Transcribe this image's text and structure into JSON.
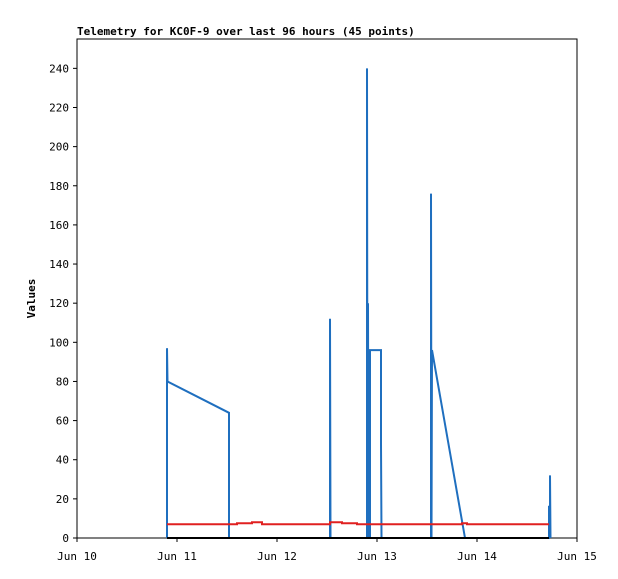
{
  "chart_data": {
    "type": "line",
    "title": "Telemetry for KC0F-9 over last 96 hours (45 points)",
    "xlabel": "",
    "ylabel": "Values",
    "x_ticks": [
      "Jun 10",
      "Jun 11",
      "Jun 12",
      "Jun 13",
      "Jun 14",
      "Jun 15"
    ],
    "y_ticks": [
      0,
      20,
      40,
      60,
      80,
      100,
      120,
      140,
      160,
      180,
      200,
      220,
      240
    ],
    "xlim_days": [
      10,
      15
    ],
    "ylim": [
      0,
      255
    ],
    "grid": false,
    "colors": {
      "blue": "#1f6fbf",
      "red": "#e02020",
      "black": "#000000"
    },
    "series": [
      {
        "color": "blue",
        "points": [
          [
            10.9,
            0
          ],
          [
            10.9,
            97
          ],
          [
            10.905,
            80
          ],
          [
            11.52,
            64
          ],
          [
            11.52,
            0
          ],
          [
            12.53,
            0
          ],
          [
            12.53,
            112
          ],
          [
            12.535,
            0
          ],
          [
            12.9,
            0
          ],
          [
            12.9,
            240
          ],
          [
            12.905,
            0
          ],
          [
            12.91,
            120
          ],
          [
            12.915,
            0
          ],
          [
            12.93,
            0
          ],
          [
            12.93,
            96
          ],
          [
            13.04,
            96
          ],
          [
            13.04,
            48
          ],
          [
            13.045,
            0
          ],
          [
            13.54,
            0
          ],
          [
            13.54,
            176
          ],
          [
            13.545,
            0
          ],
          [
            13.55,
            96
          ],
          [
            13.88,
            0
          ],
          [
            14.72,
            0
          ],
          [
            14.72,
            16
          ],
          [
            14.73,
            16
          ],
          [
            14.73,
            32
          ],
          [
            14.735,
            0
          ]
        ]
      },
      {
        "color": "red",
        "points": [
          [
            10.9,
            7
          ],
          [
            11.6,
            7
          ],
          [
            11.6,
            7.5
          ],
          [
            11.75,
            7.5
          ],
          [
            11.75,
            8
          ],
          [
            11.85,
            8
          ],
          [
            11.85,
            7
          ],
          [
            12.53,
            7
          ],
          [
            12.53,
            8
          ],
          [
            12.65,
            8
          ],
          [
            12.65,
            7.5
          ],
          [
            12.8,
            7.5
          ],
          [
            12.8,
            7
          ],
          [
            13.85,
            7
          ],
          [
            13.85,
            7.5
          ],
          [
            13.9,
            7.5
          ],
          [
            13.9,
            7
          ],
          [
            14.72,
            7
          ]
        ]
      },
      {
        "color": "black",
        "points": [
          [
            10.9,
            0
          ],
          [
            14.72,
            0
          ]
        ]
      }
    ]
  }
}
